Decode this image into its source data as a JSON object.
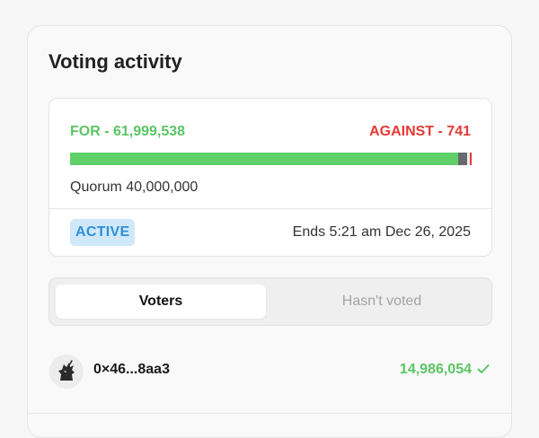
{
  "panel": {
    "title": "Voting activity"
  },
  "tally": {
    "for_label": "FOR - 61,999,538",
    "against_label": "AGAINST - 741",
    "for_share": 0.9999,
    "against_share": 0.0001,
    "quorum_marker_share": 0.9725,
    "quorum_label": "Quorum 40,000,000",
    "status": "ACTIVE",
    "end_label": "Ends 5:21 am Dec 26, 2025"
  },
  "tabs": [
    {
      "label": "Voters",
      "active": true
    },
    {
      "label": "Hasn't voted",
      "active": false
    }
  ],
  "voters": [
    {
      "address": "0×46...8aa3",
      "power": "14,986,054",
      "icon": "unicorn-avatar-icon",
      "vote_icon": "check-icon"
    }
  ],
  "colors": {
    "for": "#5bc564",
    "against": "#e53935",
    "active_badge_bg": "#cfe9fa",
    "active_badge_text": "#2f8fd6"
  }
}
